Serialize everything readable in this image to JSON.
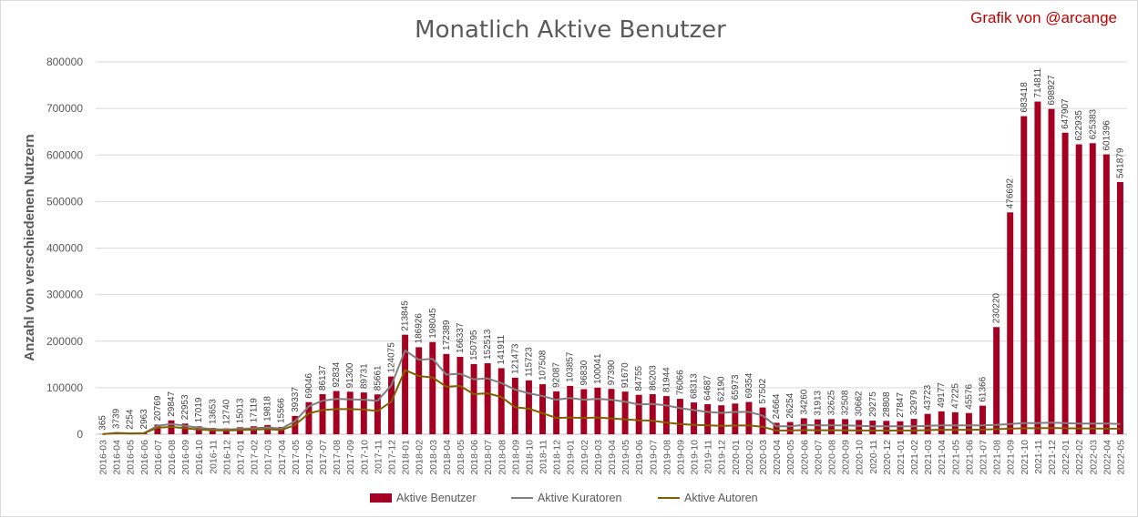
{
  "chart_data": {
    "type": "bar",
    "title": "Monatlich Aktive Benutzer",
    "credit": "Grafik von @arcange",
    "ylabel": "Anzahl von verschiedenen Nutzern",
    "xlabel": "",
    "ylim": [
      0,
      800000
    ],
    "yticks": [
      "0",
      "100000",
      "200000",
      "300000",
      "400000",
      "500000",
      "600000",
      "700000",
      "800000"
    ],
    "grid": true,
    "legend_position": "bottom",
    "categories": [
      "2016-03",
      "2016-04",
      "2016-05",
      "2016-06",
      "2016-07",
      "2016-08",
      "2016-09",
      "2016-10",
      "2016-11",
      "2016-12",
      "2017-01",
      "2017-02",
      "2017-03",
      "2017-04",
      "2017-05",
      "2017-06",
      "2017-07",
      "2017-08",
      "2017-09",
      "2017-10",
      "2017-11",
      "2017-12",
      "2018-01",
      "2018-02",
      "2018-03",
      "2018-04",
      "2018-05",
      "2018-06",
      "2018-07",
      "2018-08",
      "2018-09",
      "2018-10",
      "2018-11",
      "2018-12",
      "2019-01",
      "2019-02",
      "2019-03",
      "2019-04",
      "2019-05",
      "2019-06",
      "2019-07",
      "2019-08",
      "2019-09",
      "2019-10",
      "2019-11",
      "2019-12",
      "2020-01",
      "2020-02",
      "2020-03",
      "2020-04",
      "2020-05",
      "2020-06",
      "2020-07",
      "2020-08",
      "2020-09",
      "2020-10",
      "2020-11",
      "2020-12",
      "2021-01",
      "2021-02",
      "2021-03",
      "2021-04",
      "2021-05",
      "2021-06",
      "2021-07",
      "2021-08",
      "2021-09",
      "2021-10",
      "2021-11",
      "2021-12",
      "2022-01",
      "2022-02",
      "2022-03",
      "2022-04",
      "2022-05"
    ],
    "series": [
      {
        "name": "Aktive Benutzer",
        "type": "bar",
        "color": "#a50021",
        "values": [
          365,
          3739,
          2254,
          2963,
          20769,
          29847,
          22953,
          17019,
          13653,
          12740,
          15013,
          17119,
          19818,
          15566,
          39337,
          69046,
          86137,
          92834,
          91300,
          89731,
          85661,
          124075,
          213845,
          186926,
          198045,
          172389,
          166337,
          150795,
          152513,
          141911,
          121473,
          115723,
          107508,
          92087,
          103857,
          96830,
          100041,
          97390,
          91670,
          84755,
          86203,
          81944,
          76066,
          68313,
          64687,
          62190,
          65973,
          69354,
          57502,
          24664,
          26254,
          34260,
          31913,
          32625,
          32508,
          30662,
          29275,
          28808,
          27847,
          32979,
          43723,
          49177,
          47225,
          45576,
          61366,
          230220,
          476692,
          683418,
          714811,
          698927,
          647907,
          622935,
          625383,
          601396,
          541879
        ]
      },
      {
        "name": "Aktive Kuratoren",
        "type": "line",
        "color": "#7f7f7f",
        "values": [
          300,
          3000,
          2000,
          2500,
          18000,
          22000,
          18000,
          14000,
          11000,
          10000,
          11500,
          13000,
          15000,
          12000,
          28000,
          60000,
          72000,
          76000,
          75000,
          74000,
          72000,
          105000,
          180000,
          160000,
          162000,
          128000,
          130000,
          118000,
          120000,
          110000,
          96000,
          88000,
          82000,
          74000,
          78000,
          74000,
          76000,
          74000,
          70000,
          64000,
          65000,
          62000,
          56000,
          52000,
          48000,
          46000,
          48000,
          48000,
          40000,
          17000,
          17000,
          20000,
          19000,
          19000,
          19000,
          18000,
          17000,
          17000,
          17000,
          17000,
          18000,
          19000,
          19000,
          19000,
          19000,
          20000,
          22000,
          24000,
          24000,
          25000,
          24000,
          23000,
          23000,
          23000,
          22000
        ]
      },
      {
        "name": "Aktive Autoren",
        "type": "line",
        "color": "#806000",
        "values": [
          250,
          2500,
          1500,
          2000,
          14000,
          16000,
          13000,
          10000,
          8500,
          8000,
          9000,
          10000,
          11000,
          9000,
          20000,
          45000,
          52000,
          54000,
          54000,
          53000,
          50000,
          70000,
          138000,
          125000,
          122000,
          102000,
          104000,
          86000,
          88000,
          80000,
          58000,
          55000,
          45000,
          35000,
          36000,
          35000,
          36000,
          34000,
          32000,
          30000,
          29000,
          25000,
          22000,
          20000,
          19000,
          18000,
          18500,
          19000,
          16000,
          8000,
          8000,
          9000,
          8500,
          8500,
          8500,
          8000,
          8000,
          8000,
          8000,
          8000,
          9000,
          9500,
          9500,
          9500,
          10000,
          11000,
          12000,
          13000,
          13000,
          13500,
          13000,
          12500,
          12500,
          12000,
          12000
        ]
      }
    ]
  }
}
